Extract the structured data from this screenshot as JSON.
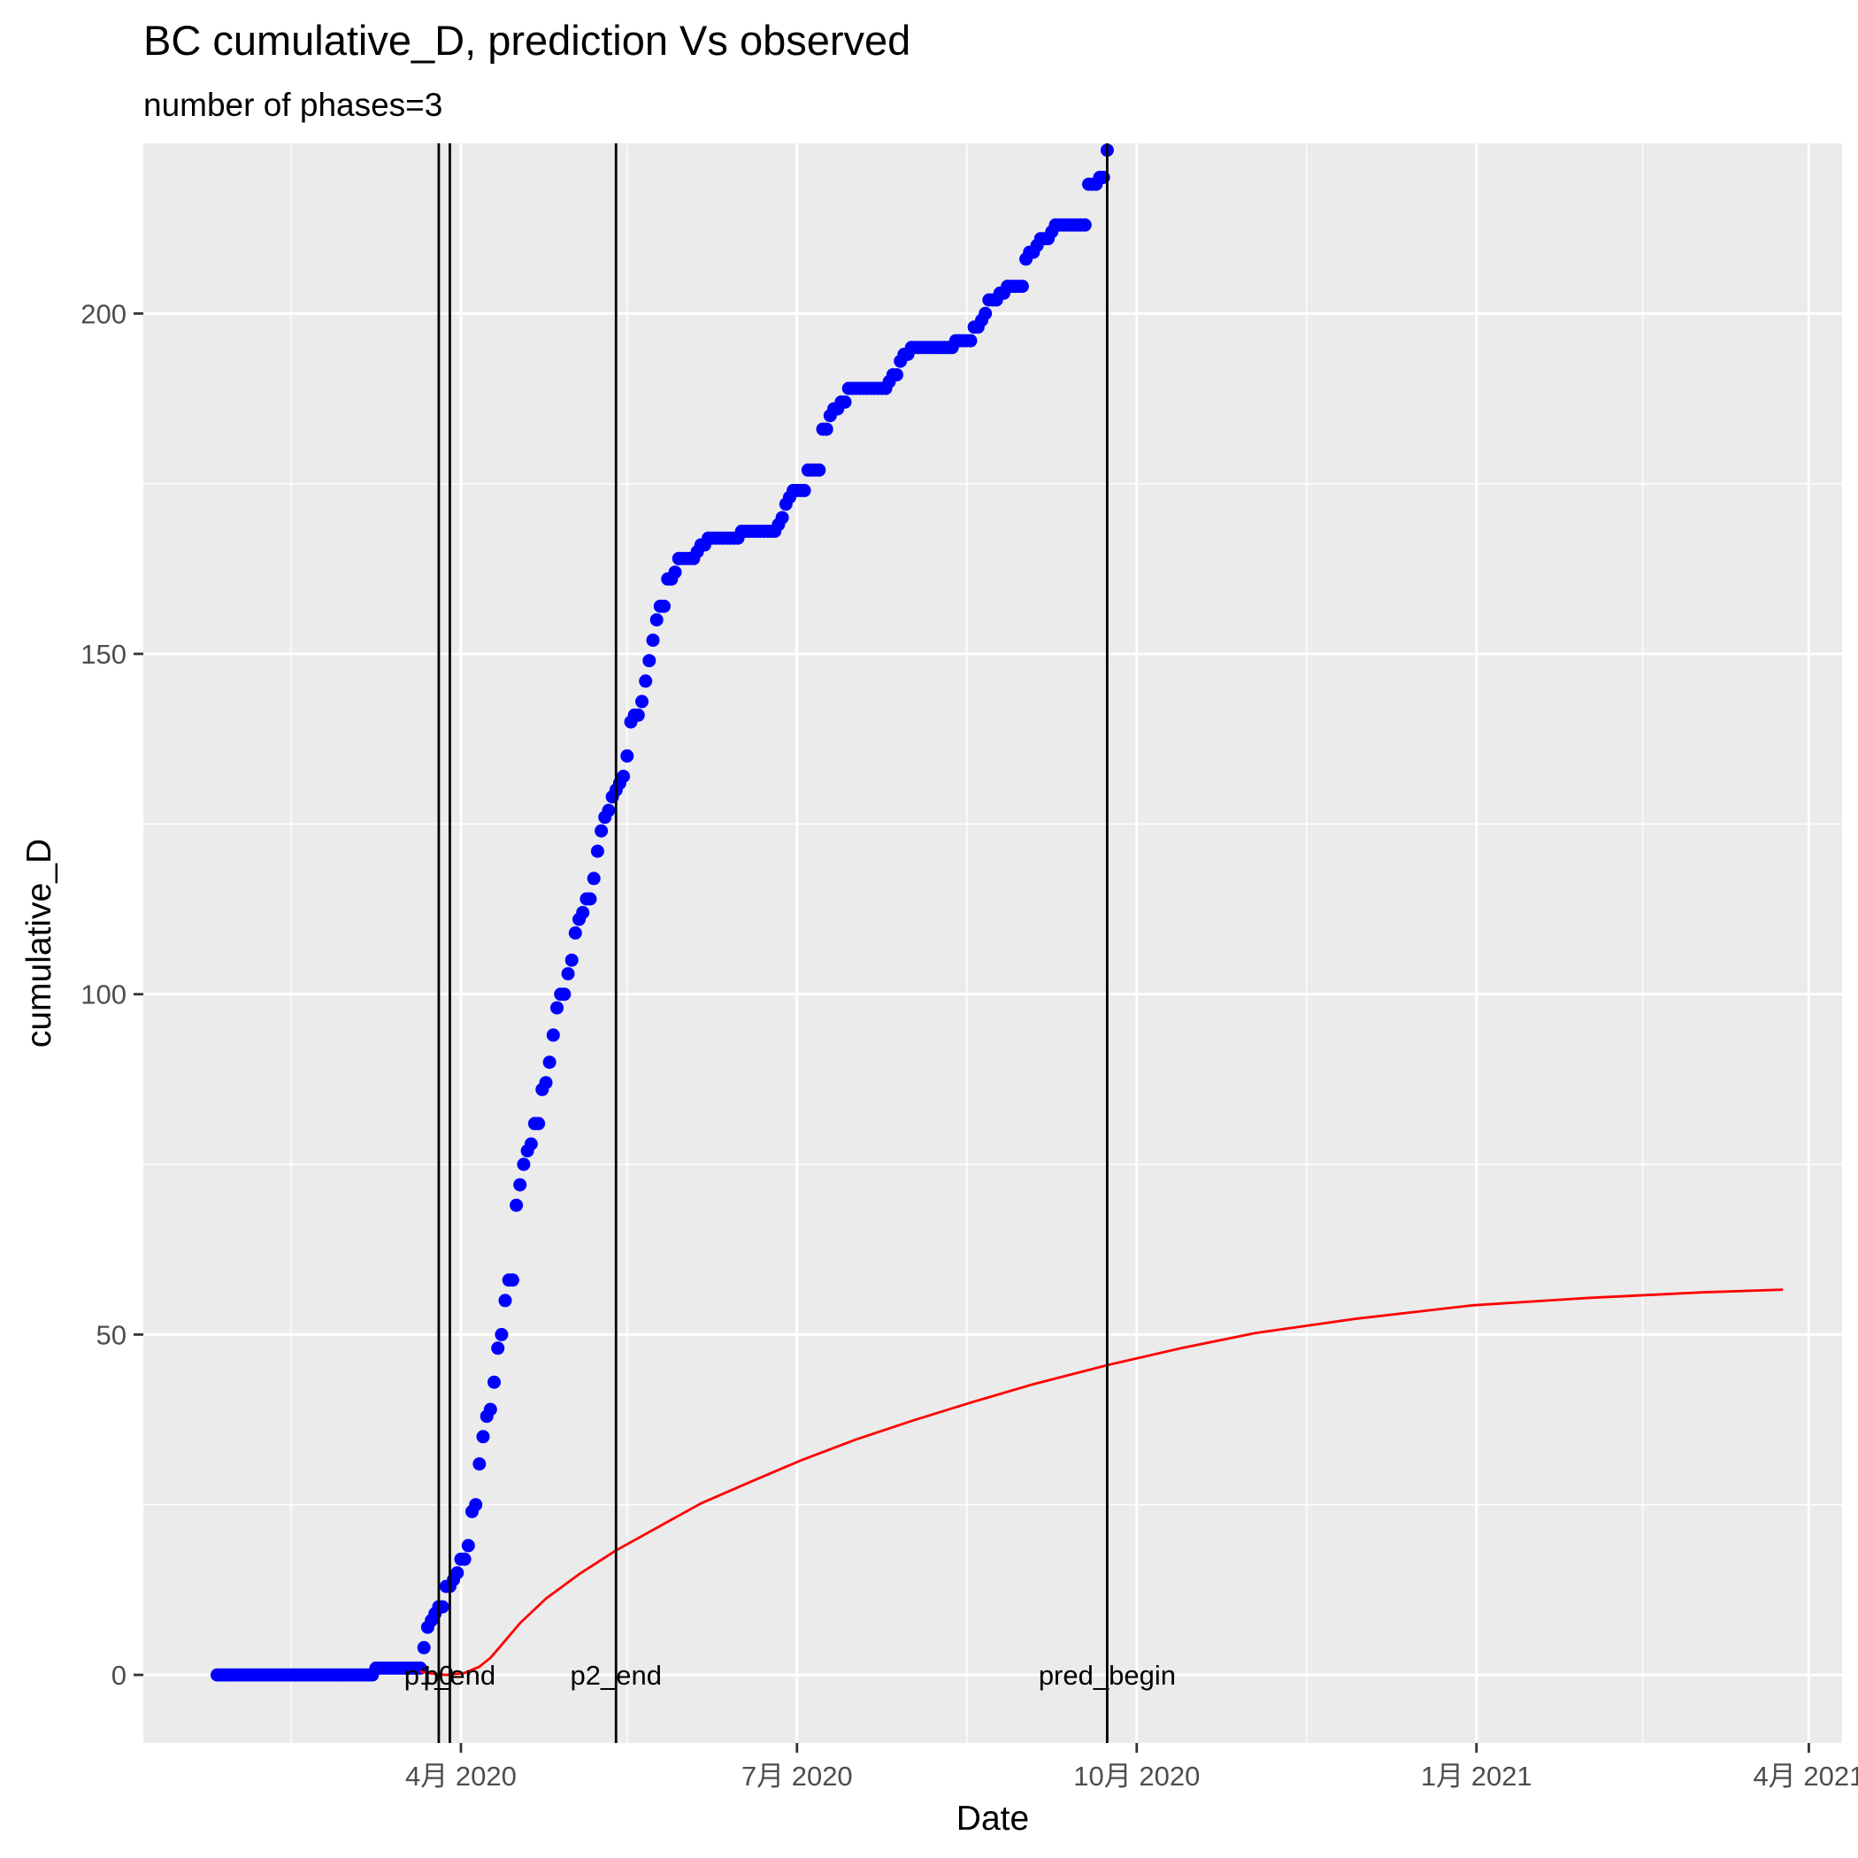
{
  "chart_data": {
    "type": "scatter",
    "title": "BC cumulative_D,  prediction Vs observed",
    "subtitle": "number of phases=3",
    "xlabel": "Date",
    "ylabel": "cumulative_D",
    "xlim": [
      "2020-01-06",
      "2021-04-10"
    ],
    "ylim": [
      -10,
      225
    ],
    "x_ticks": [
      {
        "date": "2020-04-01",
        "label": "4月 2020"
      },
      {
        "date": "2020-07-01",
        "label": "7月 2020"
      },
      {
        "date": "2020-10-01",
        "label": "10月 2020"
      },
      {
        "date": "2021-01-01",
        "label": "1月 2021"
      },
      {
        "date": "2021-04-01",
        "label": "4月 2021"
      }
    ],
    "x_minor_ticks": [
      "2020-02-15",
      "2020-05-16",
      "2020-08-16",
      "2020-11-16",
      "2021-02-15"
    ],
    "y_ticks": [
      0,
      50,
      100,
      150,
      200
    ],
    "y_minor_ticks": [
      25,
      75,
      125,
      175
    ],
    "grid": true,
    "colors": {
      "panel": "#ebebeb",
      "grid": "#ffffff",
      "observed": "#0000ff",
      "prediction": "#ff0000",
      "vline": "#000000"
    },
    "vlines": [
      {
        "date": "2020-03-26",
        "label": "p0"
      },
      {
        "date": "2020-03-29",
        "label": "p1_end"
      },
      {
        "date": "2020-05-13",
        "label": "p2_end"
      },
      {
        "date": "2020-09-23",
        "label": "pred_begin"
      }
    ],
    "observed_series": {
      "type": "scatter",
      "points": [
        [
          "2020-01-26",
          0
        ],
        [
          "2020-03-08",
          0
        ],
        [
          "2020-03-09",
          1
        ],
        [
          "2020-03-21",
          1
        ],
        [
          "2020-03-22",
          4
        ],
        [
          "2020-03-23",
          7
        ],
        [
          "2020-03-24",
          8
        ],
        [
          "2020-03-25",
          9
        ],
        [
          "2020-03-26",
          10
        ],
        [
          "2020-03-27",
          10
        ],
        [
          "2020-03-28",
          13
        ],
        [
          "2020-03-29",
          13
        ],
        [
          "2020-03-30",
          14
        ],
        [
          "2020-03-31",
          15
        ],
        [
          "2020-04-01",
          17
        ],
        [
          "2020-04-02",
          17
        ],
        [
          "2020-04-03",
          19
        ],
        [
          "2020-04-04",
          24
        ],
        [
          "2020-04-05",
          25
        ],
        [
          "2020-04-06",
          31
        ],
        [
          "2020-04-07",
          35
        ],
        [
          "2020-04-08",
          38
        ],
        [
          "2020-04-09",
          39
        ],
        [
          "2020-04-10",
          43
        ],
        [
          "2020-04-11",
          48
        ],
        [
          "2020-04-12",
          50
        ],
        [
          "2020-04-13",
          55
        ],
        [
          "2020-04-14",
          58
        ],
        [
          "2020-04-15",
          58
        ],
        [
          "2020-04-16",
          69
        ],
        [
          "2020-04-17",
          72
        ],
        [
          "2020-04-18",
          75
        ],
        [
          "2020-04-19",
          77
        ],
        [
          "2020-04-20",
          78
        ],
        [
          "2020-04-21",
          81
        ],
        [
          "2020-04-22",
          81
        ],
        [
          "2020-04-23",
          86
        ],
        [
          "2020-04-24",
          87
        ],
        [
          "2020-04-25",
          90
        ],
        [
          "2020-04-26",
          94
        ],
        [
          "2020-04-27",
          98
        ],
        [
          "2020-04-28",
          100
        ],
        [
          "2020-04-29",
          100
        ],
        [
          "2020-04-30",
          103
        ],
        [
          "2020-05-01",
          105
        ],
        [
          "2020-05-02",
          109
        ],
        [
          "2020-05-03",
          111
        ],
        [
          "2020-05-04",
          112
        ],
        [
          "2020-05-05",
          114
        ],
        [
          "2020-05-06",
          114
        ],
        [
          "2020-05-07",
          117
        ],
        [
          "2020-05-08",
          121
        ],
        [
          "2020-05-09",
          124
        ],
        [
          "2020-05-10",
          126
        ],
        [
          "2020-05-11",
          127
        ],
        [
          "2020-05-12",
          129
        ],
        [
          "2020-05-13",
          130
        ],
        [
          "2020-05-14",
          131
        ],
        [
          "2020-05-15",
          132
        ],
        [
          "2020-05-16",
          135
        ],
        [
          "2020-05-17",
          140
        ],
        [
          "2020-05-18",
          141
        ],
        [
          "2020-05-19",
          141
        ],
        [
          "2020-05-20",
          143
        ],
        [
          "2020-05-21",
          146
        ],
        [
          "2020-05-22",
          149
        ],
        [
          "2020-05-23",
          152
        ],
        [
          "2020-05-24",
          155
        ],
        [
          "2020-05-25",
          157
        ],
        [
          "2020-05-26",
          157
        ],
        [
          "2020-05-27",
          161
        ],
        [
          "2020-05-28",
          161
        ],
        [
          "2020-05-29",
          162
        ],
        [
          "2020-05-30",
          164
        ],
        [
          "2020-06-03",
          164
        ],
        [
          "2020-06-04",
          165
        ],
        [
          "2020-06-05",
          166
        ],
        [
          "2020-06-06",
          166
        ],
        [
          "2020-06-07",
          167
        ],
        [
          "2020-06-15",
          167
        ],
        [
          "2020-06-16",
          168
        ],
        [
          "2020-06-25",
          168
        ],
        [
          "2020-06-26",
          169
        ],
        [
          "2020-06-27",
          170
        ],
        [
          "2020-06-28",
          172
        ],
        [
          "2020-06-29",
          173
        ],
        [
          "2020-06-30",
          174
        ],
        [
          "2020-07-03",
          174
        ],
        [
          "2020-07-04",
          177
        ],
        [
          "2020-07-07",
          177
        ],
        [
          "2020-07-08",
          183
        ],
        [
          "2020-07-09",
          183
        ],
        [
          "2020-07-10",
          185
        ],
        [
          "2020-07-11",
          186
        ],
        [
          "2020-07-12",
          186
        ],
        [
          "2020-07-13",
          187
        ],
        [
          "2020-07-14",
          187
        ],
        [
          "2020-07-15",
          189
        ],
        [
          "2020-07-25",
          189
        ],
        [
          "2020-07-26",
          190
        ],
        [
          "2020-07-27",
          191
        ],
        [
          "2020-07-28",
          191
        ],
        [
          "2020-07-29",
          193
        ],
        [
          "2020-07-30",
          194
        ],
        [
          "2020-07-31",
          194
        ],
        [
          "2020-08-01",
          195
        ],
        [
          "2020-08-12",
          195
        ],
        [
          "2020-08-13",
          196
        ],
        [
          "2020-08-17",
          196
        ],
        [
          "2020-08-18",
          198
        ],
        [
          "2020-08-19",
          198
        ],
        [
          "2020-08-20",
          199
        ],
        [
          "2020-08-21",
          200
        ],
        [
          "2020-08-22",
          202
        ],
        [
          "2020-08-23",
          202
        ],
        [
          "2020-08-24",
          202
        ],
        [
          "2020-08-25",
          203
        ],
        [
          "2020-08-26",
          203
        ],
        [
          "2020-08-27",
          204
        ],
        [
          "2020-08-31",
          204
        ],
        [
          "2020-09-01",
          208
        ],
        [
          "2020-09-02",
          209
        ],
        [
          "2020-09-03",
          209
        ],
        [
          "2020-09-04",
          210
        ],
        [
          "2020-09-05",
          211
        ],
        [
          "2020-09-07",
          211
        ],
        [
          "2020-09-08",
          212
        ],
        [
          "2020-09-09",
          213
        ],
        [
          "2020-09-17",
          213
        ],
        [
          "2020-09-18",
          219
        ],
        [
          "2020-09-20",
          219
        ],
        [
          "2020-09-21",
          220
        ],
        [
          "2020-09-22",
          220
        ],
        [
          "2020-09-23",
          224
        ]
      ]
    },
    "prediction_series": {
      "type": "line",
      "points": [
        [
          "2020-03-21",
          0.5
        ],
        [
          "2020-03-24",
          0.2
        ],
        [
          "2020-03-28",
          0.0
        ],
        [
          "2020-04-02",
          0.3
        ],
        [
          "2020-04-06",
          1.2
        ],
        [
          "2020-04-09",
          2.5
        ],
        [
          "2020-04-12",
          4.4
        ],
        [
          "2020-04-17",
          7.6
        ],
        [
          "2020-04-24",
          11.2
        ],
        [
          "2020-05-03",
          14.8
        ],
        [
          "2020-05-13",
          18.3
        ],
        [
          "2020-05-24",
          21.6
        ],
        [
          "2020-06-05",
          25.2
        ],
        [
          "2020-06-19",
          28.5
        ],
        [
          "2020-07-02",
          31.5
        ],
        [
          "2020-07-17",
          34.6
        ],
        [
          "2020-08-01",
          37.3
        ],
        [
          "2020-08-17",
          40.0
        ],
        [
          "2020-09-03",
          42.7
        ],
        [
          "2020-09-23",
          45.5
        ],
        [
          "2020-10-13",
          48.0
        ],
        [
          "2020-11-02",
          50.2
        ],
        [
          "2020-11-29",
          52.3
        ],
        [
          "2020-12-31",
          54.3
        ],
        [
          "2021-02-01",
          55.4
        ],
        [
          "2021-03-03",
          56.2
        ],
        [
          "2021-03-25",
          56.6
        ]
      ]
    }
  }
}
